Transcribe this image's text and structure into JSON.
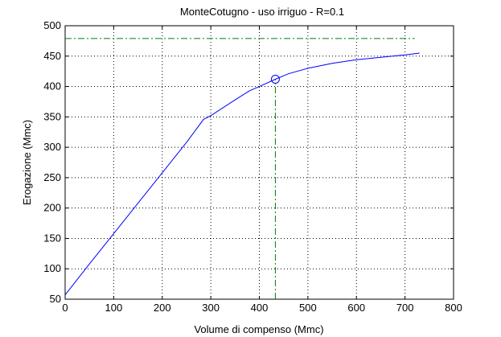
{
  "chart_data": {
    "type": "line",
    "title": "MonteCotugno  -  uso irriguo  -   R=0.1",
    "xlabel": "Volume di compenso (Mmc)",
    "ylabel": "Erogazione (Mmc)",
    "xlim": [
      0,
      800
    ],
    "ylim": [
      50,
      500
    ],
    "xticks": [
      0,
      100,
      200,
      300,
      400,
      500,
      600,
      700,
      800
    ],
    "yticks": [
      50,
      100,
      150,
      200,
      250,
      300,
      350,
      400,
      450,
      500
    ],
    "grid": true,
    "series": [
      {
        "color": "#0000ff",
        "style": "solid",
        "x": [
          0,
          50,
          100,
          150,
          200,
          250,
          285,
          300,
          350,
          380,
          400,
          433,
          460,
          500,
          550,
          600,
          650,
          700,
          730
        ],
        "y": [
          57,
          108,
          158,
          208,
          258,
          308,
          346,
          352,
          378,
          393,
          400,
          412,
          421,
          430,
          438,
          444,
          448,
          452,
          455
        ]
      }
    ],
    "reference_lines": [
      {
        "orientation": "horizontal",
        "y": 479,
        "x_range": [
          0,
          720
        ],
        "color": "#008000",
        "style": "dash-dot"
      },
      {
        "orientation": "vertical",
        "x": 433,
        "y_range": [
          50,
          412
        ],
        "color": "#008000",
        "style": "dash-dot"
      }
    ],
    "marker": {
      "x": 433,
      "y": 412,
      "shape": "circle",
      "color": "#0000ff"
    }
  }
}
